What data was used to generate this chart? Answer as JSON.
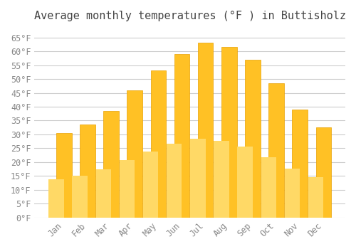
{
  "title": "Average monthly temperatures (°F ) in Buttisholz",
  "months": [
    "Jan",
    "Feb",
    "Mar",
    "Apr",
    "May",
    "Jun",
    "Jul",
    "Aug",
    "Sep",
    "Oct",
    "Nov",
    "Dec"
  ],
  "values": [
    30.5,
    33.5,
    38.5,
    46.0,
    53.0,
    59.0,
    63.0,
    61.5,
    57.0,
    48.5,
    39.0,
    32.5
  ],
  "bar_color_top": "#FFC125",
  "bar_color_bottom": "#FFD966",
  "ylim": [
    0,
    68
  ],
  "yticks": [
    0,
    5,
    10,
    15,
    20,
    25,
    30,
    35,
    40,
    45,
    50,
    55,
    60,
    65
  ],
  "ytick_labels": [
    "0°F",
    "5°F",
    "10°F",
    "15°F",
    "20°F",
    "25°F",
    "30°F",
    "35°F",
    "40°F",
    "45°F",
    "50°F",
    "55°F",
    "60°F",
    "65°F"
  ],
  "background_color": "#ffffff",
  "grid_color": "#cccccc",
  "title_fontsize": 11,
  "tick_fontsize": 8.5,
  "bar_edge_color": "#E8A000",
  "font_family": "monospace"
}
